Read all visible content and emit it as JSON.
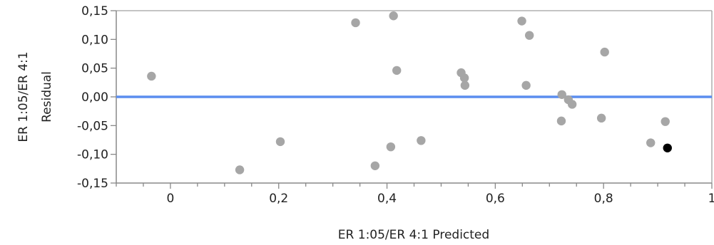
{
  "chart_data": {
    "type": "scatter",
    "xlabel": "ER 1:05/ER 4:1 Predicted",
    "ylabel_line1": "ER 1:05/ER 4:1",
    "ylabel_line2": "Residual",
    "xlim": [
      -0.1,
      1.0
    ],
    "ylim": [
      -0.15,
      0.15
    ],
    "x_ticks": [
      {
        "value": 0,
        "label": "0"
      },
      {
        "value": 0.2,
        "label": "0,2"
      },
      {
        "value": 0.4,
        "label": "0,4"
      },
      {
        "value": 0.6,
        "label": "0,6"
      },
      {
        "value": 0.8,
        "label": "0,8"
      },
      {
        "value": 1.0,
        "label": "1"
      }
    ],
    "y_ticks": [
      {
        "value": 0.15,
        "label": "0,15"
      },
      {
        "value": 0.1,
        "label": "0,10"
      },
      {
        "value": 0.05,
        "label": "0,05"
      },
      {
        "value": 0.0,
        "label": "0,00"
      },
      {
        "value": -0.05,
        "label": "-0,05"
      },
      {
        "value": -0.1,
        "label": "-0,10"
      },
      {
        "value": -0.15,
        "label": "-0,15"
      }
    ],
    "reference_line": {
      "y": 0,
      "color": "#5b8def"
    },
    "grid": false,
    "point_color": "#a6a6a6",
    "highlight_color": "#000000",
    "points": [
      {
        "x": -0.035,
        "y": 0.036
      },
      {
        "x": 0.128,
        "y": -0.127
      },
      {
        "x": 0.203,
        "y": -0.078
      },
      {
        "x": 0.342,
        "y": 0.129
      },
      {
        "x": 0.378,
        "y": -0.12
      },
      {
        "x": 0.407,
        "y": -0.087
      },
      {
        "x": 0.412,
        "y": 0.141
      },
      {
        "x": 0.418,
        "y": 0.046
      },
      {
        "x": 0.463,
        "y": -0.076
      },
      {
        "x": 0.537,
        "y": 0.042
      },
      {
        "x": 0.543,
        "y": 0.033
      },
      {
        "x": 0.544,
        "y": 0.02
      },
      {
        "x": 0.649,
        "y": 0.132
      },
      {
        "x": 0.657,
        "y": 0.02
      },
      {
        "x": 0.663,
        "y": 0.107
      },
      {
        "x": 0.722,
        "y": -0.042
      },
      {
        "x": 0.723,
        "y": 0.004
      },
      {
        "x": 0.735,
        "y": -0.005
      },
      {
        "x": 0.742,
        "y": -0.013
      },
      {
        "x": 0.796,
        "y": -0.037
      },
      {
        "x": 0.802,
        "y": 0.078
      },
      {
        "x": 0.887,
        "y": -0.08
      },
      {
        "x": 0.914,
        "y": -0.043
      },
      {
        "x": 0.918,
        "y": -0.089,
        "highlight": true
      }
    ]
  }
}
